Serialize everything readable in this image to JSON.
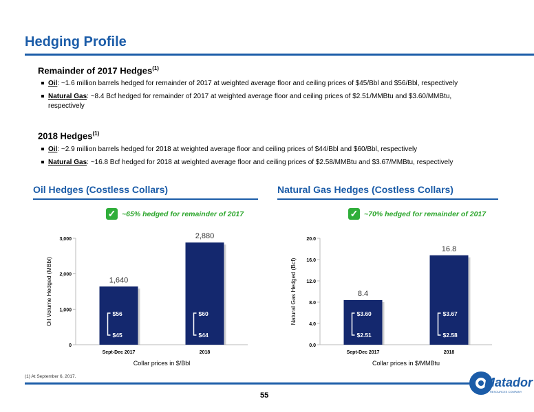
{
  "title": "Hedging Profile",
  "section_2017": {
    "heading": "Remainder of 2017 Hedges",
    "sup": "(1)",
    "oil_label": "Oil",
    "oil_text": ": ~1.6 million barrels hedged for remainder of 2017 at weighted average floor and ceiling prices of $45/Bbl and $56/Bbl, respectively",
    "gas_label": "Natural Gas",
    "gas_text": ": ~8.4 Bcf hedged for remainder of 2017 at weighted average floor and ceiling prices of $2.51/MMBtu and $3.60/MMBtu,",
    "gas_text_cont": "respectively"
  },
  "section_2018": {
    "heading": "2018 Hedges",
    "sup": "(1)",
    "oil_label": "Oil",
    "oil_text": ": ~2.9 million barrels hedged for 2018 at weighted average floor and ceiling prices of $44/Bbl and $60/Bbl, respectively",
    "gas_label": "Natural Gas",
    "gas_text": ": ~16.8 Bcf hedged for 2018 at weighted average floor and ceiling prices of $2.58/MMBtu and $3.67/MMBtu, respectively"
  },
  "oil_chart_title": "Oil Hedges (Costless Collars)",
  "gas_chart_title": "Natural Gas Hedges (Costless Collars)",
  "oil_note": "~65% hedged for remainder of 2017",
  "gas_note": "~70% hedged for remainder of 2017",
  "check_icon": "checkmark-icon",
  "chart_data": [
    {
      "type": "bar",
      "categories": [
        "Sept-Dec 2017",
        "2018"
      ],
      "values": [
        1640,
        2880
      ],
      "value_labels": [
        "1,640",
        "2,880"
      ],
      "ceilings": [
        "$56",
        "$60"
      ],
      "floors": [
        "$45",
        "$44"
      ],
      "ylabel": "Oil Volume Hedged (MBbl)",
      "xlabel": "Collar prices in $/Bbl",
      "ylim": [
        0,
        3000
      ],
      "yticks": [
        0,
        1000,
        2000,
        3000
      ],
      "ytick_labels": [
        "0",
        "1,000",
        "2,000",
        "3,000"
      ],
      "bar_color": "#14286e"
    },
    {
      "type": "bar",
      "categories": [
        "Sept-Dec 2017",
        "2018"
      ],
      "values": [
        8.4,
        16.8
      ],
      "value_labels": [
        "8.4",
        "16.8"
      ],
      "ceilings": [
        "$3.60",
        "$3.67"
      ],
      "floors": [
        "$2.51",
        "$2.58"
      ],
      "ylabel": "Natural Gas Hedged (Bcf)",
      "xlabel": "Collar prices in $/MMBtu",
      "ylim": [
        0,
        20
      ],
      "yticks": [
        0,
        4,
        8,
        12,
        16,
        20
      ],
      "ytick_labels": [
        "0.0",
        "4.0",
        "8.0",
        "12.0",
        "16.0",
        "20.0"
      ],
      "bar_color": "#14286e"
    }
  ],
  "footnote": "(1)   At September 6, 2017.",
  "page_number": "55",
  "logo_text": "Matador",
  "logo_subtext": "RESOURCES COMPANY"
}
